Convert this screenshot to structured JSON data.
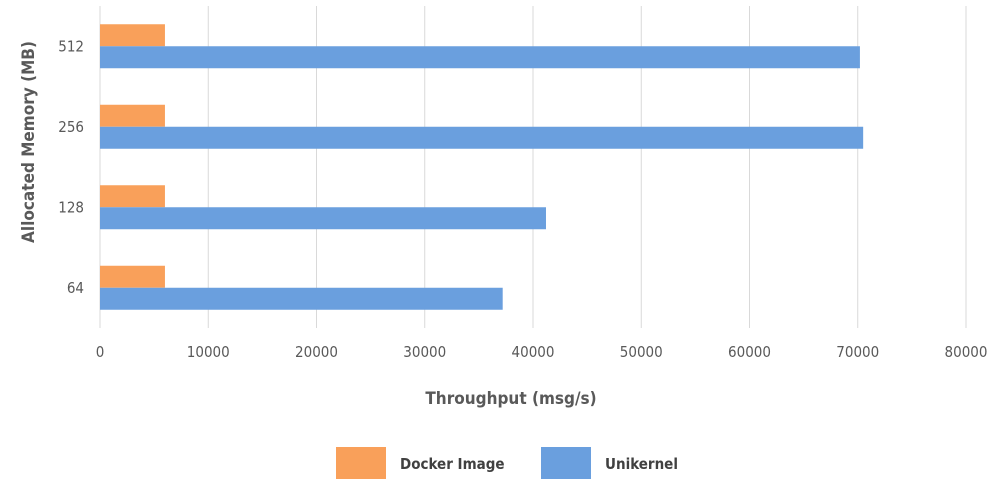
{
  "chart_data": {
    "type": "bar",
    "orientation": "horizontal",
    "categories": [
      "512",
      "256",
      "128",
      "64"
    ],
    "series": [
      {
        "name": "Docker Image",
        "color": "#f9a05a",
        "values": [
          6000,
          6000,
          6000,
          6000
        ]
      },
      {
        "name": "Unikernel",
        "color": "#6a9fde",
        "values": [
          70200,
          70500,
          41200,
          37200
        ]
      }
    ],
    "xlabel": "Throughput (msg/s)",
    "ylabel": "Allocated Memory (MB)",
    "xlim": [
      0,
      80000
    ],
    "xticks": [
      "0",
      "10000",
      "20000",
      "30000",
      "40000",
      "50000",
      "60000",
      "70000",
      "80000"
    ],
    "grid": "vertical",
    "legend_position": "bottom"
  }
}
